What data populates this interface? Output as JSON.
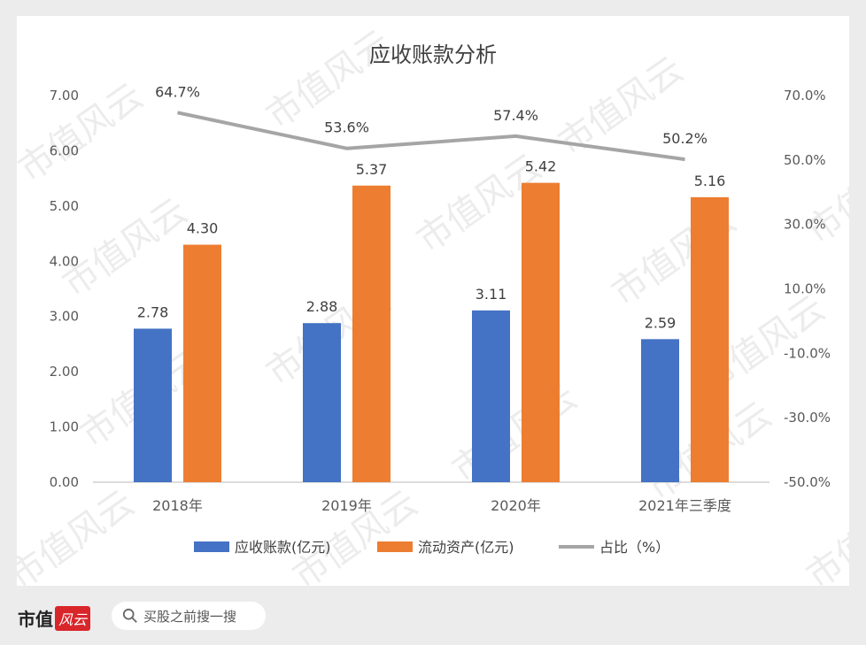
{
  "chart_data": {
    "type": "bar",
    "title": "应收账款分析",
    "categories": [
      "2018年",
      "2019年",
      "2020年",
      "2021年三季度"
    ],
    "series": [
      {
        "name": "应收账款(亿元)",
        "type": "bar",
        "axis": "left",
        "color": "#4472c4",
        "values": [
          2.78,
          2.88,
          3.11,
          2.59
        ],
        "labels": [
          "2.78",
          "2.88",
          "3.11",
          "2.59"
        ]
      },
      {
        "name": "流动资产(亿元)",
        "type": "bar",
        "axis": "left",
        "color": "#ed7d31",
        "values": [
          4.3,
          5.37,
          5.42,
          5.16
        ],
        "labels": [
          "4.30",
          "5.37",
          "5.42",
          "5.16"
        ]
      },
      {
        "name": "占比（%）",
        "type": "line",
        "axis": "right",
        "color": "#a5a5a5",
        "values": [
          64.7,
          53.6,
          57.4,
          50.2
        ],
        "labels": [
          "64.7%",
          "53.6%",
          "57.4%",
          "50.2%"
        ]
      }
    ],
    "left_axis": {
      "ylim": [
        0,
        7
      ],
      "ticks": [
        "0.00",
        "1.00",
        "2.00",
        "3.00",
        "4.00",
        "5.00",
        "6.00",
        "7.00"
      ]
    },
    "right_axis": {
      "ylim": [
        -50,
        70
      ],
      "ticks": [
        "-50.0%",
        "-30.0%",
        "-10.0%",
        "10.0%",
        "30.0%",
        "50.0%",
        "70.0%"
      ]
    },
    "legend_position": "bottom",
    "grid": false
  },
  "watermark": {
    "text": "市值风云"
  },
  "footer": {
    "brand": "市值",
    "brand_mark": "风云",
    "search_placeholder": "买股之前搜一搜"
  }
}
